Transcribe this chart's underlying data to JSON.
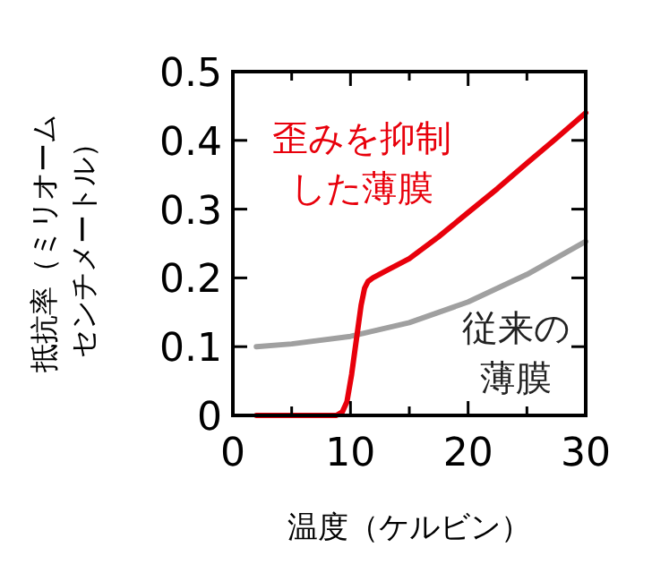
{
  "chart_data": {
    "type": "line",
    "xlabel": "温度（ケルビン）",
    "ylabel": "抵抗率（ミリオームセンチメートル）",
    "xlim": [
      0,
      30
    ],
    "ylim": [
      0,
      0.5
    ],
    "xticks": [
      0,
      {
        "value": 5,
        "label": null
      },
      10,
      {
        "value": 15,
        "label": null
      },
      20,
      {
        "value": 25,
        "label": null
      },
      30
    ],
    "yticks": [
      0,
      0.1,
      0.2,
      0.3,
      0.4,
      0.5
    ],
    "grid": false,
    "marker": "none",
    "line_style": "solid",
    "series": [
      {
        "name": "歪みを抑制した薄膜",
        "color": "#e8000b",
        "x": [
          2,
          8.8,
          9.3,
          9.7,
          10.1,
          10.5,
          10.9,
          11.2,
          11.5,
          11.9,
          13,
          15,
          17.5,
          20,
          22.5,
          25,
          27.5,
          30
        ],
        "values": [
          0,
          0,
          0.005,
          0.02,
          0.06,
          0.11,
          0.16,
          0.185,
          0.195,
          0.2,
          0.21,
          0.228,
          0.26,
          0.295,
          0.33,
          0.367,
          0.403,
          0.44
        ]
      },
      {
        "name": "従来の薄膜",
        "color": "#a0a0a0",
        "x": [
          2,
          5,
          10,
          15,
          20,
          25,
          30
        ],
        "values": [
          0.1,
          0.104,
          0.115,
          0.135,
          0.165,
          0.205,
          0.253
        ]
      }
    ]
  }
}
